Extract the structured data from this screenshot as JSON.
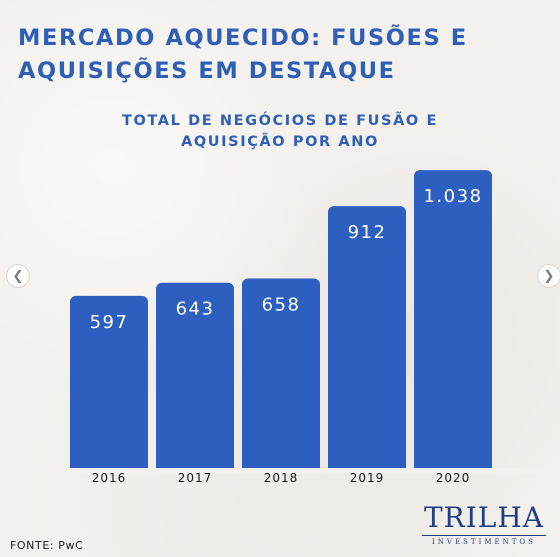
{
  "headline": {
    "line1": "MERCADO AQUECIDO: FUSÕES E",
    "line2": "AQUISIÇÕES EM DESTAQUE"
  },
  "chart_data": {
    "type": "bar",
    "title": "TOTAL DE NEGÓCIOS DE FUSÃO E AQUISIÇÃO POR ANO",
    "title_lines": [
      "TOTAL DE NEGÓCIOS DE FUSÃO E",
      "AQUISIÇÃO POR ANO"
    ],
    "categories": [
      "2016",
      "2017",
      "2018",
      "2019",
      "2020"
    ],
    "values": [
      597,
      643,
      658,
      912,
      1038
    ],
    "value_labels": [
      "597",
      "643",
      "658",
      "912",
      "1.038"
    ],
    "xlabel": "",
    "ylabel": "",
    "grid": false,
    "bar_color": "#2c5fbf",
    "label_color": "#ffffff"
  },
  "footer": {
    "source": "FONTE: PwC"
  },
  "logo": {
    "word": "TRILHA",
    "sub": "INVESTIMENTOS"
  },
  "nav": {
    "prev_icon": "chevron-left-icon",
    "next_icon": "chevron-right-icon"
  }
}
